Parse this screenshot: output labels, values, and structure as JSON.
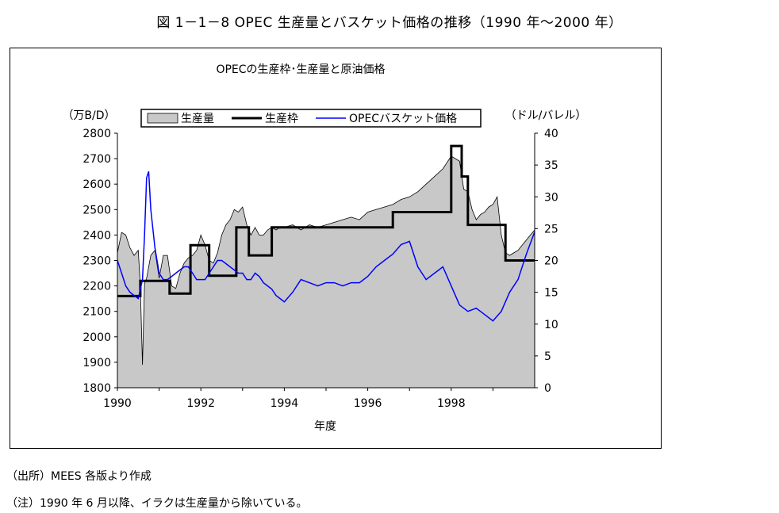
{
  "page": {
    "figure_title": "図 1－1－8  OPEC 生産量とバスケット価格の推移（1990 年～2000 年）",
    "source_note": "（出所）MEES 各版より作成",
    "footnote": "（注）1990 年 6 月以降、イラクは生産量から除いている。"
  },
  "chart_data": {
    "type": "line",
    "title": "OPECの生産枠･生産量と原油価格",
    "xlabel": "年度",
    "ylabel": "（万B/D）",
    "y2label": "（ドル/バレル）",
    "xlim": [
      1990,
      2000
    ],
    "x_ticks": [
      1990,
      1992,
      1994,
      1996,
      1998
    ],
    "ylim": [
      1800,
      2800
    ],
    "y_ticks": [
      1800,
      1900,
      2000,
      2100,
      2200,
      2300,
      2400,
      2500,
      2600,
      2700,
      2800
    ],
    "y2lim": [
      0,
      40
    ],
    "y2_ticks": [
      0,
      5,
      10,
      15,
      20,
      25,
      30,
      35,
      40
    ],
    "legend_position": "top",
    "colors": {
      "production": "#c8c8c8",
      "quota": "#000000",
      "price": "#0000ff"
    },
    "series": [
      {
        "name": "生産量",
        "kind": "area",
        "axis": "left",
        "x": [
          1990.0,
          1990.1,
          1990.2,
          1990.3,
          1990.4,
          1990.5,
          1990.55,
          1990.6,
          1990.65,
          1990.7,
          1990.8,
          1990.9,
          1991.0,
          1991.1,
          1991.2,
          1991.3,
          1991.4,
          1991.5,
          1991.6,
          1991.7,
          1991.8,
          1991.9,
          1992.0,
          1992.1,
          1992.2,
          1992.3,
          1992.4,
          1992.5,
          1992.6,
          1992.7,
          1992.8,
          1992.9,
          1993.0,
          1993.1,
          1993.2,
          1993.3,
          1993.4,
          1993.5,
          1993.6,
          1993.7,
          1993.8,
          1993.9,
          1994.0,
          1994.2,
          1994.4,
          1994.6,
          1994.8,
          1995.0,
          1995.2,
          1995.4,
          1995.6,
          1995.8,
          1996.0,
          1996.2,
          1996.4,
          1996.6,
          1996.8,
          1997.0,
          1997.2,
          1997.4,
          1997.6,
          1997.8,
          1998.0,
          1998.1,
          1998.2,
          1998.3,
          1998.4,
          1998.5,
          1998.6,
          1998.7,
          1998.8,
          1998.9,
          1999.0,
          1999.1,
          1999.2,
          1999.3,
          1999.4,
          1999.5,
          1999.6,
          1999.7,
          1999.8,
          1999.9,
          2000.0
        ],
        "values": [
          2330,
          2410,
          2400,
          2350,
          2320,
          2340,
          2200,
          1890,
          2210,
          2230,
          2320,
          2340,
          2230,
          2320,
          2320,
          2200,
          2190,
          2250,
          2290,
          2310,
          2320,
          2340,
          2400,
          2360,
          2300,
          2290,
          2330,
          2400,
          2440,
          2460,
          2500,
          2490,
          2510,
          2440,
          2400,
          2430,
          2400,
          2400,
          2420,
          2430,
          2420,
          2430,
          2430,
          2440,
          2420,
          2440,
          2430,
          2440,
          2450,
          2460,
          2470,
          2460,
          2490,
          2500,
          2510,
          2520,
          2540,
          2550,
          2570,
          2600,
          2630,
          2660,
          2710,
          2700,
          2690,
          2580,
          2570,
          2500,
          2460,
          2480,
          2490,
          2510,
          2520,
          2550,
          2400,
          2330,
          2320,
          2330,
          2340,
          2360,
          2380,
          2400,
          2420
        ]
      },
      {
        "name": "生産枠",
        "kind": "step",
        "axis": "left",
        "x": [
          1990.0,
          1990.45,
          1990.55,
          1991.25,
          1991.75,
          1992.0,
          1992.2,
          1992.85,
          1993.15,
          1993.55,
          1993.7,
          1994.0,
          1995.0,
          1996.0,
          1996.6,
          1997.0,
          1997.9,
          1998.0,
          1998.25,
          1998.4,
          1999.3,
          2000.0
        ],
        "values": [
          2160,
          2160,
          2220,
          2170,
          2360,
          2360,
          2240,
          2430,
          2320,
          2320,
          2430,
          2430,
          2430,
          2430,
          2490,
          2490,
          2490,
          2750,
          2630,
          2440,
          2300,
          2300
        ]
      },
      {
        "name": "OPECバスケット価格",
        "kind": "line",
        "axis": "right",
        "x": [
          1990.0,
          1990.1,
          1990.2,
          1990.3,
          1990.4,
          1990.5,
          1990.6,
          1990.65,
          1990.7,
          1990.75,
          1990.8,
          1990.9,
          1991.0,
          1991.1,
          1991.2,
          1991.3,
          1991.4,
          1991.5,
          1991.6,
          1991.7,
          1991.8,
          1991.9,
          1992.0,
          1992.1,
          1992.2,
          1992.3,
          1992.4,
          1992.5,
          1992.6,
          1992.7,
          1992.8,
          1992.9,
          1993.0,
          1993.1,
          1993.2,
          1993.3,
          1993.4,
          1993.5,
          1993.6,
          1993.7,
          1993.8,
          1993.9,
          1994.0,
          1994.2,
          1994.4,
          1994.6,
          1994.8,
          1995.0,
          1995.2,
          1995.4,
          1995.6,
          1995.8,
          1996.0,
          1996.2,
          1996.4,
          1996.6,
          1996.8,
          1997.0,
          1997.2,
          1997.4,
          1997.6,
          1997.8,
          1998.0,
          1998.2,
          1998.4,
          1998.6,
          1998.8,
          1999.0,
          1999.2,
          1999.4,
          1999.6,
          1999.8,
          2000.0
        ],
        "values": [
          20,
          18,
          16,
          15,
          14.5,
          14,
          17,
          24,
          33,
          34,
          28,
          22,
          18,
          17,
          17,
          17.5,
          18,
          18.5,
          19,
          19,
          18,
          17,
          17,
          17,
          18,
          19,
          20,
          20,
          19.5,
          19,
          18.5,
          18,
          18,
          17,
          17,
          18,
          17.5,
          16.5,
          16,
          15.5,
          14.5,
          14,
          13.5,
          15,
          17,
          16.5,
          16,
          16.5,
          16.5,
          16,
          16.5,
          16.5,
          17.5,
          19,
          20,
          21,
          22.5,
          23,
          19,
          17,
          18,
          19,
          16,
          13,
          12,
          12.5,
          11.5,
          10.5,
          12,
          15,
          17,
          21,
          24.5
        ]
      }
    ]
  }
}
